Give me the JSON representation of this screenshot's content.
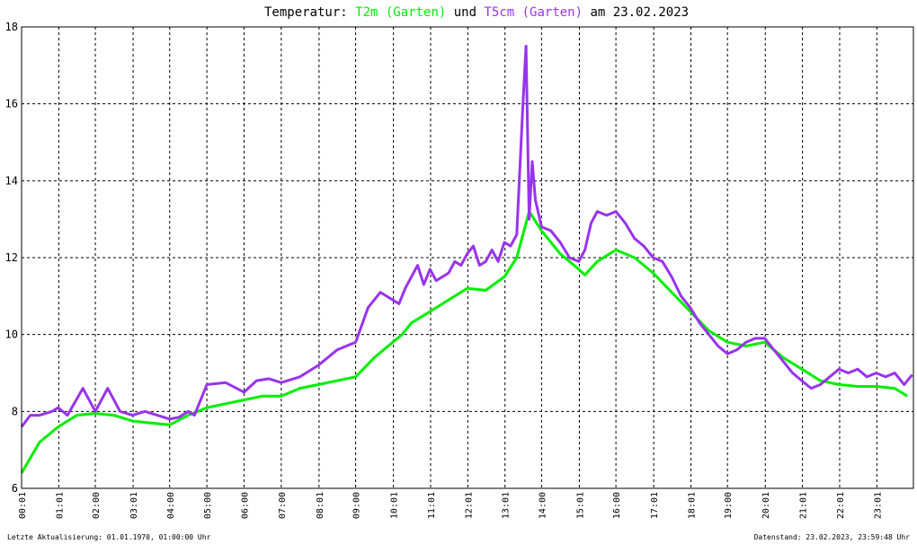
{
  "header": {
    "prefix": "Temperatur: ",
    "series1_label": "T2m (Garten)",
    "joiner": " und ",
    "series2_label": "T5cm (Garten)",
    "suffix": " am 23.02.2023"
  },
  "footer": {
    "left": "Letzte Aktualisierung: 01.01.1970, 01:00:00 Uhr",
    "right": "Datenstand: 23.02.2023, 23:59:48 Uhr"
  },
  "chart_data": {
    "type": "line",
    "title": "Temperatur: T2m (Garten) und T5cm (Garten) am 23.02.2023",
    "xlabel": "",
    "ylabel": "",
    "ylim": [
      6,
      18
    ],
    "xlim": [
      "00:01",
      "24:00"
    ],
    "y_ticks": [
      6,
      8,
      10,
      12,
      14,
      16,
      18
    ],
    "x_ticks": [
      "00:01",
      "01:01",
      "02:00",
      "03:01",
      "04:00",
      "05:00",
      "06:00",
      "07:00",
      "08:01",
      "09:00",
      "10:01",
      "11:01",
      "12:01",
      "13:01",
      "14:00",
      "15:01",
      "16:00",
      "17:01",
      "18:01",
      "19:00",
      "20:01",
      "21:01",
      "22:01",
      "23:01"
    ],
    "grid": true,
    "series": [
      {
        "name": "T2m (Garten)",
        "color": "#00ee00",
        "x": [
          "00:01",
          "00:30",
          "01:00",
          "01:30",
          "02:00",
          "02:30",
          "03:00",
          "03:30",
          "04:00",
          "04:30",
          "05:00",
          "05:30",
          "06:00",
          "06:30",
          "07:00",
          "07:30",
          "08:00",
          "08:30",
          "09:00",
          "09:30",
          "10:00",
          "10:15",
          "10:30",
          "11:00",
          "11:30",
          "12:00",
          "12:30",
          "13:00",
          "13:20",
          "13:40",
          "14:00",
          "14:30",
          "15:00",
          "15:10",
          "15:30",
          "16:00",
          "16:30",
          "17:00",
          "17:30",
          "18:00",
          "18:30",
          "19:00",
          "19:30",
          "20:00",
          "20:30",
          "21:00",
          "21:30",
          "22:00",
          "22:30",
          "23:00",
          "23:30",
          "23:50"
        ],
        "values": [
          6.4,
          7.2,
          7.6,
          7.9,
          7.95,
          7.9,
          7.75,
          7.7,
          7.65,
          7.9,
          8.1,
          8.2,
          8.3,
          8.4,
          8.4,
          8.6,
          8.7,
          8.8,
          8.9,
          9.4,
          9.8,
          10.0,
          10.3,
          10.6,
          10.9,
          11.2,
          11.15,
          11.5,
          12.0,
          13.2,
          12.7,
          12.1,
          11.7,
          11.55,
          11.9,
          12.2,
          12.0,
          11.6,
          11.1,
          10.6,
          10.1,
          9.8,
          9.7,
          9.8,
          9.4,
          9.1,
          8.8,
          8.7,
          8.65,
          8.65,
          8.6,
          8.4
        ]
      },
      {
        "name": "T5cm (Garten)",
        "color": "#9933ee",
        "x": [
          "00:01",
          "00:15",
          "00:30",
          "00:50",
          "01:00",
          "01:15",
          "01:40",
          "02:00",
          "02:20",
          "02:40",
          "03:00",
          "03:20",
          "03:40",
          "04:00",
          "04:15",
          "04:30",
          "04:40",
          "05:00",
          "05:30",
          "06:00",
          "06:20",
          "06:40",
          "07:00",
          "07:30",
          "08:00",
          "08:30",
          "09:00",
          "09:20",
          "09:40",
          "10:00",
          "10:10",
          "10:20",
          "10:30",
          "10:40",
          "10:50",
          "11:00",
          "11:10",
          "11:20",
          "11:30",
          "11:40",
          "11:50",
          "12:00",
          "12:10",
          "12:20",
          "12:30",
          "12:40",
          "12:50",
          "13:00",
          "13:10",
          "13:20",
          "13:30",
          "13:35",
          "13:40",
          "13:45",
          "13:50",
          "14:00",
          "14:15",
          "14:30",
          "14:45",
          "15:00",
          "15:10",
          "15:20",
          "15:30",
          "15:45",
          "16:00",
          "16:15",
          "16:30",
          "16:45",
          "17:00",
          "17:15",
          "17:30",
          "17:45",
          "18:00",
          "18:15",
          "18:30",
          "18:45",
          "19:00",
          "19:15",
          "19:30",
          "19:45",
          "20:00",
          "20:15",
          "20:30",
          "20:45",
          "21:00",
          "21:15",
          "21:30",
          "21:45",
          "22:00",
          "22:15",
          "22:30",
          "22:45",
          "23:00",
          "23:15",
          "23:30",
          "23:45",
          "23:58"
        ],
        "values": [
          7.6,
          7.9,
          7.9,
          8.0,
          8.1,
          7.9,
          8.6,
          8.0,
          8.6,
          8.0,
          7.9,
          8.0,
          7.9,
          7.8,
          7.85,
          8.0,
          7.9,
          8.7,
          8.75,
          8.5,
          8.8,
          8.85,
          8.75,
          8.9,
          9.2,
          9.6,
          9.8,
          10.7,
          11.1,
          10.9,
          10.8,
          11.2,
          11.5,
          11.8,
          11.3,
          11.7,
          11.4,
          11.5,
          11.6,
          11.9,
          11.8,
          12.1,
          12.3,
          11.8,
          11.9,
          12.2,
          11.9,
          12.4,
          12.3,
          12.6,
          16.0,
          17.5,
          13.0,
          14.5,
          13.5,
          12.8,
          12.7,
          12.4,
          12.0,
          11.9,
          12.2,
          12.9,
          13.2,
          13.1,
          13.2,
          12.9,
          12.5,
          12.3,
          12.0,
          11.9,
          11.5,
          11.0,
          10.7,
          10.3,
          10.0,
          9.7,
          9.5,
          9.6,
          9.8,
          9.9,
          9.9,
          9.6,
          9.3,
          9.0,
          8.8,
          8.6,
          8.7,
          8.9,
          9.1,
          9.0,
          9.1,
          8.9,
          9.0,
          8.9,
          9.0,
          8.7,
          8.95
        ]
      }
    ]
  }
}
